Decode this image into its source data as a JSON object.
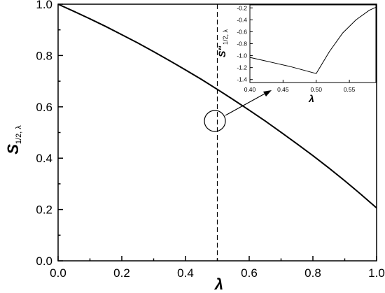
{
  "chart_data": [
    {
      "type": "line",
      "x": [
        0.0,
        0.05,
        0.1,
        0.15,
        0.2,
        0.25,
        0.3,
        0.35,
        0.4,
        0.45,
        0.5,
        0.55,
        0.6,
        0.65,
        0.7,
        0.75,
        0.8,
        0.85,
        0.9,
        0.95,
        1.0
      ],
      "series": [
        {
          "values": [
            1.0,
            0.972,
            0.943,
            0.913,
            0.881,
            0.849,
            0.815,
            0.78,
            0.744,
            0.707,
            0.668,
            0.628,
            0.587,
            0.545,
            0.501,
            0.456,
            0.41,
            0.362,
            0.312,
            0.26,
            0.206
          ]
        }
      ],
      "xlabel": "λ",
      "ylabel_main": "S",
      "ylabel_sub": "1/2, λ",
      "xlim": [
        0.0,
        1.0
      ],
      "ylim": [
        0.0,
        1.0
      ],
      "xticks": [
        "0.0",
        "0.2",
        "0.4",
        "0.6",
        "0.8",
        "1.0"
      ],
      "yticks": [
        "0.0",
        "0.2",
        "0.4",
        "0.6",
        "0.8",
        "1.0"
      ],
      "vline_x": 0.5,
      "grid": false
    },
    {
      "type": "line",
      "x": [
        0.4,
        0.42,
        0.44,
        0.46,
        0.48,
        0.5,
        0.52,
        0.54,
        0.56,
        0.58,
        0.59
      ],
      "series": [
        {
          "values": [
            -1.03,
            -1.08,
            -1.13,
            -1.18,
            -1.24,
            -1.3,
            -0.93,
            -0.62,
            -0.4,
            -0.24,
            -0.19
          ]
        }
      ],
      "xlabel": "λ",
      "ylabel_main": "S''",
      "ylabel_sub": "1/2, λ",
      "xlim": [
        0.4,
        0.59
      ],
      "ylim": [
        -1.45,
        -0.15
      ],
      "xticks": [
        "0.40",
        "0.45",
        "0.50",
        "0.55"
      ],
      "yticks": [
        "-1.4",
        "-1.2",
        "-1.0",
        "-0.8",
        "-0.6",
        "-0.4",
        "-0.2"
      ],
      "grid": false
    }
  ]
}
